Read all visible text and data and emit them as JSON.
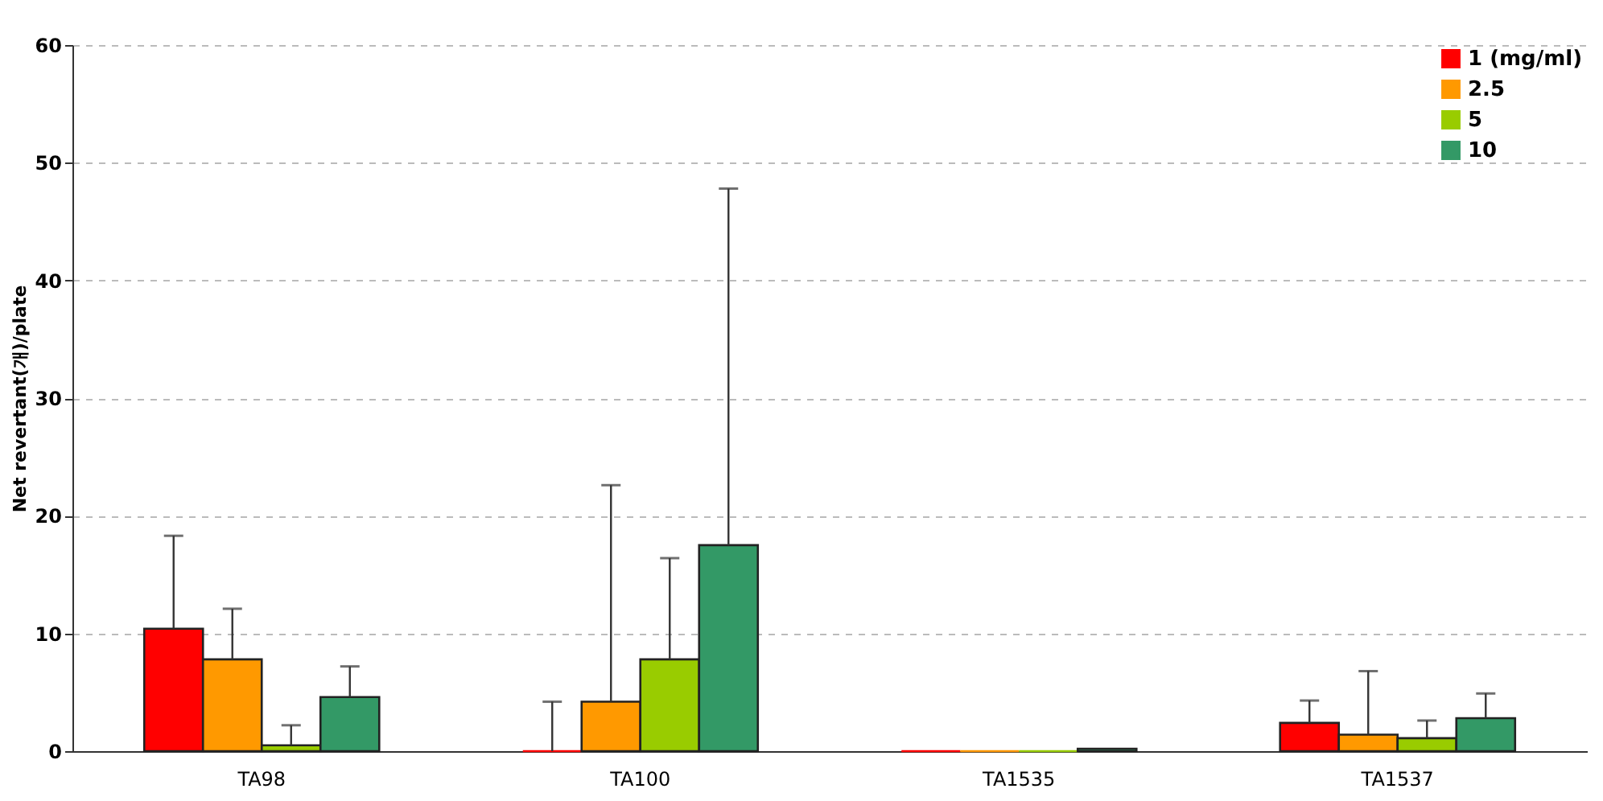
{
  "chart_data": {
    "type": "bar",
    "ylabel": "Net revertant(개)/plate",
    "categories": [
      "TA98",
      "TA100",
      "TA1535",
      "TA1537"
    ],
    "series": [
      {
        "name": "1 (mg/ml)",
        "color": "#ff0000",
        "values": [
          10.4,
          0,
          0,
          2.4
        ],
        "errors": [
          [
            10.4,
            18.3
          ],
          [
            0,
            4.2
          ],
          null,
          [
            2.4,
            4.3
          ]
        ]
      },
      {
        "name": "2.5",
        "color": "#ff9900",
        "values": [
          7.8,
          4.2,
          0,
          1.4
        ],
        "errors": [
          [
            7.8,
            12.1
          ],
          [
            4.2,
            22.6
          ],
          null,
          [
            1.4,
            6.8
          ]
        ]
      },
      {
        "name": "5",
        "color": "#99cc00",
        "values": [
          0.5,
          7.8,
          0,
          1.1
        ],
        "errors": [
          [
            0.5,
            2.2
          ],
          [
            7.8,
            16.4
          ],
          null,
          [
            1.1,
            2.6
          ]
        ]
      },
      {
        "name": "10",
        "color": "#339966",
        "values": [
          4.6,
          17.5,
          0.2,
          2.8
        ],
        "errors": [
          [
            4.6,
            7.2
          ],
          [
            17.5,
            47.8
          ],
          null,
          [
            2.8,
            4.9
          ]
        ]
      }
    ],
    "ylim": [
      0,
      60
    ],
    "yticks": [
      0,
      10,
      20,
      30,
      40,
      50,
      60
    ],
    "grid": "y",
    "legend": "top right"
  }
}
